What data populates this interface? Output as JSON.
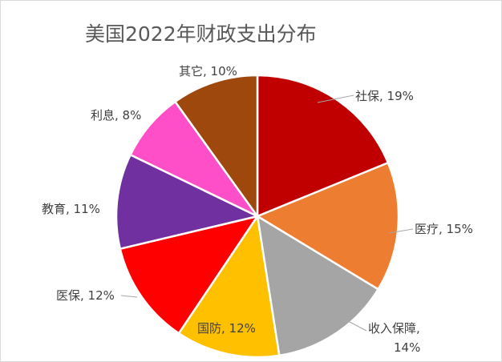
{
  "chart_data": {
    "type": "pie",
    "title": "美国2022年财政支出分布",
    "slices": [
      {
        "name": "社保",
        "value": 19,
        "label_line1": "社保, 19%",
        "label_line2": "",
        "color": "#C00000"
      },
      {
        "name": "医疗",
        "value": 15,
        "label_line1": "医疗, 15%",
        "label_line2": "",
        "color": "#ED7D31"
      },
      {
        "name": "收入保障",
        "value": 14,
        "label_line1": "收入保障,",
        "label_line2": "14%",
        "color": "#A5A5A5"
      },
      {
        "name": "国防",
        "value": 12,
        "label_line1": "国防, 12%",
        "label_line2": "",
        "color": "#FFC000"
      },
      {
        "name": "医保",
        "value": 12,
        "label_line1": "医保, 12%",
        "label_line2": "",
        "color": "#FF0000"
      },
      {
        "name": "教育",
        "value": 11,
        "label_line1": "教育, 11%",
        "label_line2": "",
        "color": "#7030A0"
      },
      {
        "name": "利息",
        "value": 8,
        "label_line1": "利息, 8%",
        "label_line2": "",
        "color": "#FF4FC8"
      },
      {
        "name": "其它",
        "value": 10,
        "label_line1": "其它, 10%",
        "label_line2": "",
        "color": "#9E480E"
      }
    ],
    "legend": "none",
    "label_position": "outside-end"
  }
}
